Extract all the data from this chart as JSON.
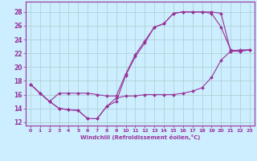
{
  "xlabel": "Windchill (Refroidissement éolien,°C)",
  "background_color": "#cceeff",
  "grid_color": "#aacccc",
  "line_color": "#993399",
  "xlim": [
    -0.5,
    23.5
  ],
  "ylim": [
    11.5,
    29.5
  ],
  "xticks": [
    0,
    1,
    2,
    3,
    4,
    5,
    6,
    7,
    8,
    9,
    10,
    11,
    12,
    13,
    14,
    15,
    16,
    17,
    18,
    19,
    20,
    21,
    22,
    23
  ],
  "yticks": [
    12,
    14,
    16,
    18,
    20,
    22,
    24,
    26,
    28
  ],
  "curve1_x": [
    0,
    1,
    2,
    3,
    4,
    5,
    6,
    7,
    8,
    9,
    10,
    11,
    12,
    13,
    14,
    15,
    16,
    17,
    18,
    19,
    20,
    21,
    22,
    23
  ],
  "curve1_y": [
    17.5,
    16.2,
    15.0,
    14.0,
    13.8,
    13.7,
    12.5,
    12.5,
    14.3,
    15.0,
    18.8,
    21.5,
    23.5,
    25.8,
    26.3,
    27.8,
    28.0,
    28.0,
    28.0,
    27.8,
    25.8,
    22.5,
    22.3,
    22.5
  ],
  "curve2_x": [
    0,
    1,
    2,
    3,
    4,
    5,
    6,
    7,
    8,
    9,
    10,
    11,
    12,
    13,
    14,
    15,
    16,
    17,
    18,
    19,
    20,
    21,
    22,
    23
  ],
  "curve2_y": [
    17.5,
    16.2,
    15.0,
    16.2,
    16.2,
    16.2,
    16.2,
    16.0,
    15.8,
    15.8,
    19.0,
    21.8,
    23.8,
    25.8,
    26.3,
    27.8,
    28.0,
    28.0,
    28.0,
    28.0,
    27.8,
    22.3,
    22.3,
    22.5
  ],
  "curve3_x": [
    0,
    1,
    2,
    3,
    4,
    5,
    6,
    7,
    8,
    9,
    10,
    11,
    12,
    13,
    14,
    15,
    16,
    17,
    18,
    19,
    20,
    21,
    22,
    23
  ],
  "curve3_y": [
    17.5,
    16.2,
    15.0,
    14.0,
    13.8,
    13.7,
    12.5,
    12.5,
    14.3,
    15.5,
    15.8,
    15.8,
    16.0,
    16.0,
    16.0,
    16.0,
    16.2,
    16.5,
    17.0,
    18.5,
    21.0,
    22.3,
    22.5,
    22.5
  ]
}
